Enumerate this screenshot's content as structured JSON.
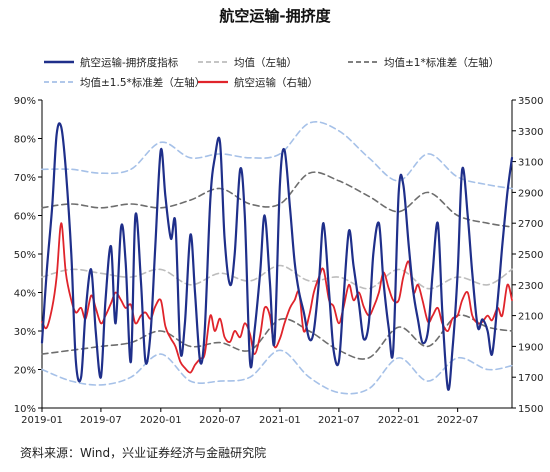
{
  "chart_data": {
    "type": "line",
    "title": "航空运输-拥挤度",
    "source": "资料来源：Wind，兴业证券经济与金融研究院",
    "x_ticks": [
      "2019-01",
      "2019-07",
      "2020-01",
      "2020-07",
      "2021-01",
      "2021-07",
      "2022-01",
      "2022-07"
    ],
    "x_range": [
      "2019-01-01",
      "2022-12-15"
    ],
    "y_left": {
      "ticks": [
        "10%",
        "20%",
        "30%",
        "40%",
        "50%",
        "60%",
        "70%",
        "80%",
        "90%"
      ],
      "range": [
        10,
        90
      ],
      "unit": "%"
    },
    "y_right": {
      "ticks": [
        "1500",
        "1700",
        "1900",
        "2100",
        "2300",
        "2500",
        "2700",
        "2900",
        "3100",
        "3300",
        "3500"
      ],
      "range": [
        1500,
        3500
      ]
    },
    "legend": [
      "航空运输-拥挤度指标",
      "均值（左轴）",
      "均值±1*标准差（左轴）",
      "均值±1.5*标准差（左轴）",
      "航空运输（右轴）"
    ],
    "grid": false,
    "legend_position": "top",
    "colors": {
      "crowding": "#1f2f8a",
      "mean": "#bdbdbd",
      "std1": "#6e6e6e",
      "std15": "#a6c1e8",
      "price": "#e0242b"
    },
    "series": [
      {
        "name": "航空运输-拥挤度指标",
        "axis": "left",
        "x": [
          "2019-01-01",
          "2019-01-15",
          "2019-02-01",
          "2019-02-15",
          "2019-03-01",
          "2019-03-15",
          "2019-04-01",
          "2019-04-15",
          "2019-05-01",
          "2019-05-15",
          "2019-06-01",
          "2019-06-15",
          "2019-07-01",
          "2019-07-15",
          "2019-08-01",
          "2019-08-15",
          "2019-09-01",
          "2019-09-15",
          "2019-10-01",
          "2019-10-15",
          "2019-11-01",
          "2019-11-15",
          "2019-12-01",
          "2019-12-15",
          "2020-01-01",
          "2020-01-15",
          "2020-02-01",
          "2020-02-15",
          "2020-03-01",
          "2020-03-15",
          "2020-04-01",
          "2020-04-15",
          "2020-05-01",
          "2020-05-15",
          "2020-06-01",
          "2020-06-15",
          "2020-07-01",
          "2020-07-15",
          "2020-08-01",
          "2020-08-15",
          "2020-09-01",
          "2020-09-15",
          "2020-10-01",
          "2020-10-15",
          "2020-11-01",
          "2020-11-15",
          "2020-12-01",
          "2020-12-15",
          "2021-01-01",
          "2021-01-15",
          "2021-02-01",
          "2021-02-15",
          "2021-03-01",
          "2021-03-15",
          "2021-04-01",
          "2021-04-15",
          "2021-05-01",
          "2021-05-15",
          "2021-06-01",
          "2021-06-15",
          "2021-07-01",
          "2021-07-15",
          "2021-08-01",
          "2021-08-15",
          "2021-09-01",
          "2021-09-15",
          "2021-10-01",
          "2021-10-15",
          "2021-11-01",
          "2021-11-15",
          "2021-12-01",
          "2021-12-15",
          "2022-01-01",
          "2022-01-15",
          "2022-02-01",
          "2022-02-15",
          "2022-03-01",
          "2022-03-15",
          "2022-04-01",
          "2022-04-15",
          "2022-05-01",
          "2022-05-15",
          "2022-06-01",
          "2022-06-15",
          "2022-07-01",
          "2022-07-15",
          "2022-08-01",
          "2022-08-15",
          "2022-09-01",
          "2022-09-15",
          "2022-10-01",
          "2022-10-15",
          "2022-11-01",
          "2022-11-15",
          "2022-12-01",
          "2022-12-15"
        ],
        "values": [
          27,
          45,
          62,
          81,
          83,
          72,
          50,
          22,
          18,
          35,
          46,
          30,
          18,
          38,
          52,
          32,
          57,
          48,
          22,
          60,
          43,
          22,
          30,
          52,
          77,
          65,
          54,
          58,
          25,
          32,
          55,
          40,
          22,
          30,
          64,
          75,
          79,
          54,
          42,
          50,
          72,
          60,
          22,
          30,
          45,
          60,
          43,
          27,
          68,
          77,
          62,
          48,
          40,
          35,
          28,
          30,
          43,
          58,
          40,
          25,
          22,
          38,
          56,
          47,
          37,
          28,
          32,
          50,
          58,
          43,
          31,
          25,
          66,
          68,
          52,
          40,
          33,
          27,
          30,
          45,
          58,
          35,
          15,
          25,
          45,
          72,
          60,
          45,
          31,
          33,
          30,
          24,
          38,
          52,
          66,
          75
        ]
      },
      {
        "name": "均值（左轴）",
        "axis": "left",
        "x": [
          "2019-01-01",
          "2019-04-01",
          "2019-07-01",
          "2019-10-01",
          "2020-01-01",
          "2020-04-01",
          "2020-07-01",
          "2020-10-01",
          "2021-01-01",
          "2021-04-01",
          "2021-07-01",
          "2021-10-01",
          "2022-01-01",
          "2022-04-01",
          "2022-07-01",
          "2022-10-01",
          "2022-12-15"
        ],
        "values": [
          44,
          46,
          45,
          44,
          46,
          42,
          45,
          43,
          47,
          43,
          44,
          41,
          46,
          41,
          44,
          42,
          46
        ]
      },
      {
        "name": "均值+1*标准差（左轴）",
        "axis": "left",
        "x": [
          "2019-01-01",
          "2019-04-01",
          "2019-07-01",
          "2019-10-01",
          "2020-01-01",
          "2020-04-01",
          "2020-07-01",
          "2020-10-01",
          "2021-01-01",
          "2021-04-01",
          "2021-07-01",
          "2021-10-01",
          "2022-01-01",
          "2022-04-01",
          "2022-07-01",
          "2022-10-01",
          "2022-12-15"
        ],
        "values": [
          62,
          63,
          62,
          63,
          62,
          64,
          67,
          63,
          63,
          71,
          69,
          65,
          61,
          66,
          60,
          58,
          57
        ]
      },
      {
        "name": "均值-1*标准差（左轴）",
        "axis": "left",
        "x": [
          "2019-01-01",
          "2019-04-01",
          "2019-07-01",
          "2019-10-01",
          "2020-01-01",
          "2020-04-01",
          "2020-07-01",
          "2020-10-01",
          "2021-01-01",
          "2021-04-01",
          "2021-07-01",
          "2021-10-01",
          "2022-01-01",
          "2022-04-01",
          "2022-07-01",
          "2022-10-01",
          "2022-12-15"
        ],
        "values": [
          24,
          25,
          26,
          27,
          30,
          26,
          27,
          25,
          33,
          30,
          25,
          23,
          31,
          26,
          34,
          31,
          30
        ]
      },
      {
        "name": "均值+1.5*标准差（左轴）",
        "axis": "left",
        "x": [
          "2019-01-01",
          "2019-04-01",
          "2019-07-01",
          "2019-10-01",
          "2020-01-01",
          "2020-04-01",
          "2020-07-01",
          "2020-10-01",
          "2021-01-01",
          "2021-04-01",
          "2021-07-01",
          "2021-10-01",
          "2022-01-01",
          "2022-04-01",
          "2022-07-01",
          "2022-10-01",
          "2022-12-15"
        ],
        "values": [
          72,
          72,
          71,
          72,
          79,
          75,
          76,
          75,
          76,
          84,
          82,
          75,
          69,
          76,
          70,
          68,
          67
        ]
      },
      {
        "name": "均值-1.5*标准差（左轴）",
        "axis": "left",
        "x": [
          "2019-01-01",
          "2019-04-01",
          "2019-07-01",
          "2019-10-01",
          "2020-01-01",
          "2020-04-01",
          "2020-07-01",
          "2020-10-01",
          "2021-01-01",
          "2021-04-01",
          "2021-07-01",
          "2021-10-01",
          "2022-01-01",
          "2022-04-01",
          "2022-07-01",
          "2022-10-01",
          "2022-12-15"
        ],
        "values": [
          20,
          17,
          16,
          18,
          24,
          17,
          17,
          18,
          25,
          18,
          14,
          15,
          23,
          17,
          23,
          20,
          21
        ]
      },
      {
        "name": "航空运输（右轴）",
        "axis": "right",
        "x": [
          "2019-01-01",
          "2019-01-15",
          "2019-02-01",
          "2019-02-15",
          "2019-03-01",
          "2019-03-15",
          "2019-04-01",
          "2019-04-15",
          "2019-05-01",
          "2019-05-15",
          "2019-06-01",
          "2019-06-15",
          "2019-07-01",
          "2019-07-15",
          "2019-08-01",
          "2019-08-15",
          "2019-09-01",
          "2019-09-15",
          "2019-10-01",
          "2019-10-15",
          "2019-11-01",
          "2019-11-15",
          "2019-12-01",
          "2019-12-15",
          "2020-01-01",
          "2020-01-15",
          "2020-02-01",
          "2020-02-15",
          "2020-03-01",
          "2020-03-15",
          "2020-04-01",
          "2020-04-15",
          "2020-05-01",
          "2020-05-15",
          "2020-06-01",
          "2020-06-15",
          "2020-07-01",
          "2020-07-15",
          "2020-08-01",
          "2020-08-15",
          "2020-09-01",
          "2020-09-15",
          "2020-10-01",
          "2020-10-15",
          "2020-11-01",
          "2020-11-15",
          "2020-12-01",
          "2020-12-15",
          "2021-01-01",
          "2021-01-15",
          "2021-02-01",
          "2021-02-15",
          "2021-03-01",
          "2021-03-15",
          "2021-04-01",
          "2021-04-15",
          "2021-05-01",
          "2021-05-15",
          "2021-06-01",
          "2021-06-15",
          "2021-07-01",
          "2021-07-15",
          "2021-08-01",
          "2021-08-15",
          "2021-09-01",
          "2021-09-15",
          "2021-10-01",
          "2021-10-15",
          "2021-11-01",
          "2021-11-15",
          "2021-12-01",
          "2021-12-15",
          "2022-01-01",
          "2022-01-15",
          "2022-02-01",
          "2022-02-15",
          "2022-03-01",
          "2022-03-15",
          "2022-04-01",
          "2022-04-15",
          "2022-05-01",
          "2022-05-15",
          "2022-06-01",
          "2022-06-15",
          "2022-07-01",
          "2022-07-15",
          "2022-08-01",
          "2022-08-15",
          "2022-09-01",
          "2022-09-15",
          "2022-10-01",
          "2022-10-15",
          "2022-11-01",
          "2022-11-15",
          "2022-12-01",
          "2022-12-15"
        ],
        "values": [
          2060,
          2020,
          2150,
          2350,
          2700,
          2380,
          2200,
          2120,
          2150,
          2080,
          2230,
          2150,
          2050,
          2100,
          2180,
          2250,
          2200,
          2150,
          2170,
          2050,
          2100,
          2120,
          2080,
          2160,
          2200,
          2030,
          1950,
          1900,
          1800,
          1760,
          1730,
          1780,
          1820,
          1850,
          2100,
          2000,
          2080,
          1960,
          1930,
          2000,
          1960,
          2050,
          1980,
          1850,
          1970,
          2150,
          2100,
          1900,
          1950,
          2050,
          2150,
          2200,
          2250,
          2000,
          2100,
          2250,
          2350,
          2400,
          2200,
          2160,
          2050,
          2150,
          2300,
          2200,
          2250,
          2160,
          2100,
          2150,
          2250,
          2380,
          2280,
          2200,
          2200,
          2350,
          2450,
          2250,
          2300,
          2200,
          2060,
          2100,
          2150,
          2050,
          2000,
          2080,
          2100,
          2200,
          2250,
          2100,
          2050,
          2060,
          2100,
          2070,
          2150,
          2100,
          2300,
          2200
        ]
      }
    ]
  }
}
